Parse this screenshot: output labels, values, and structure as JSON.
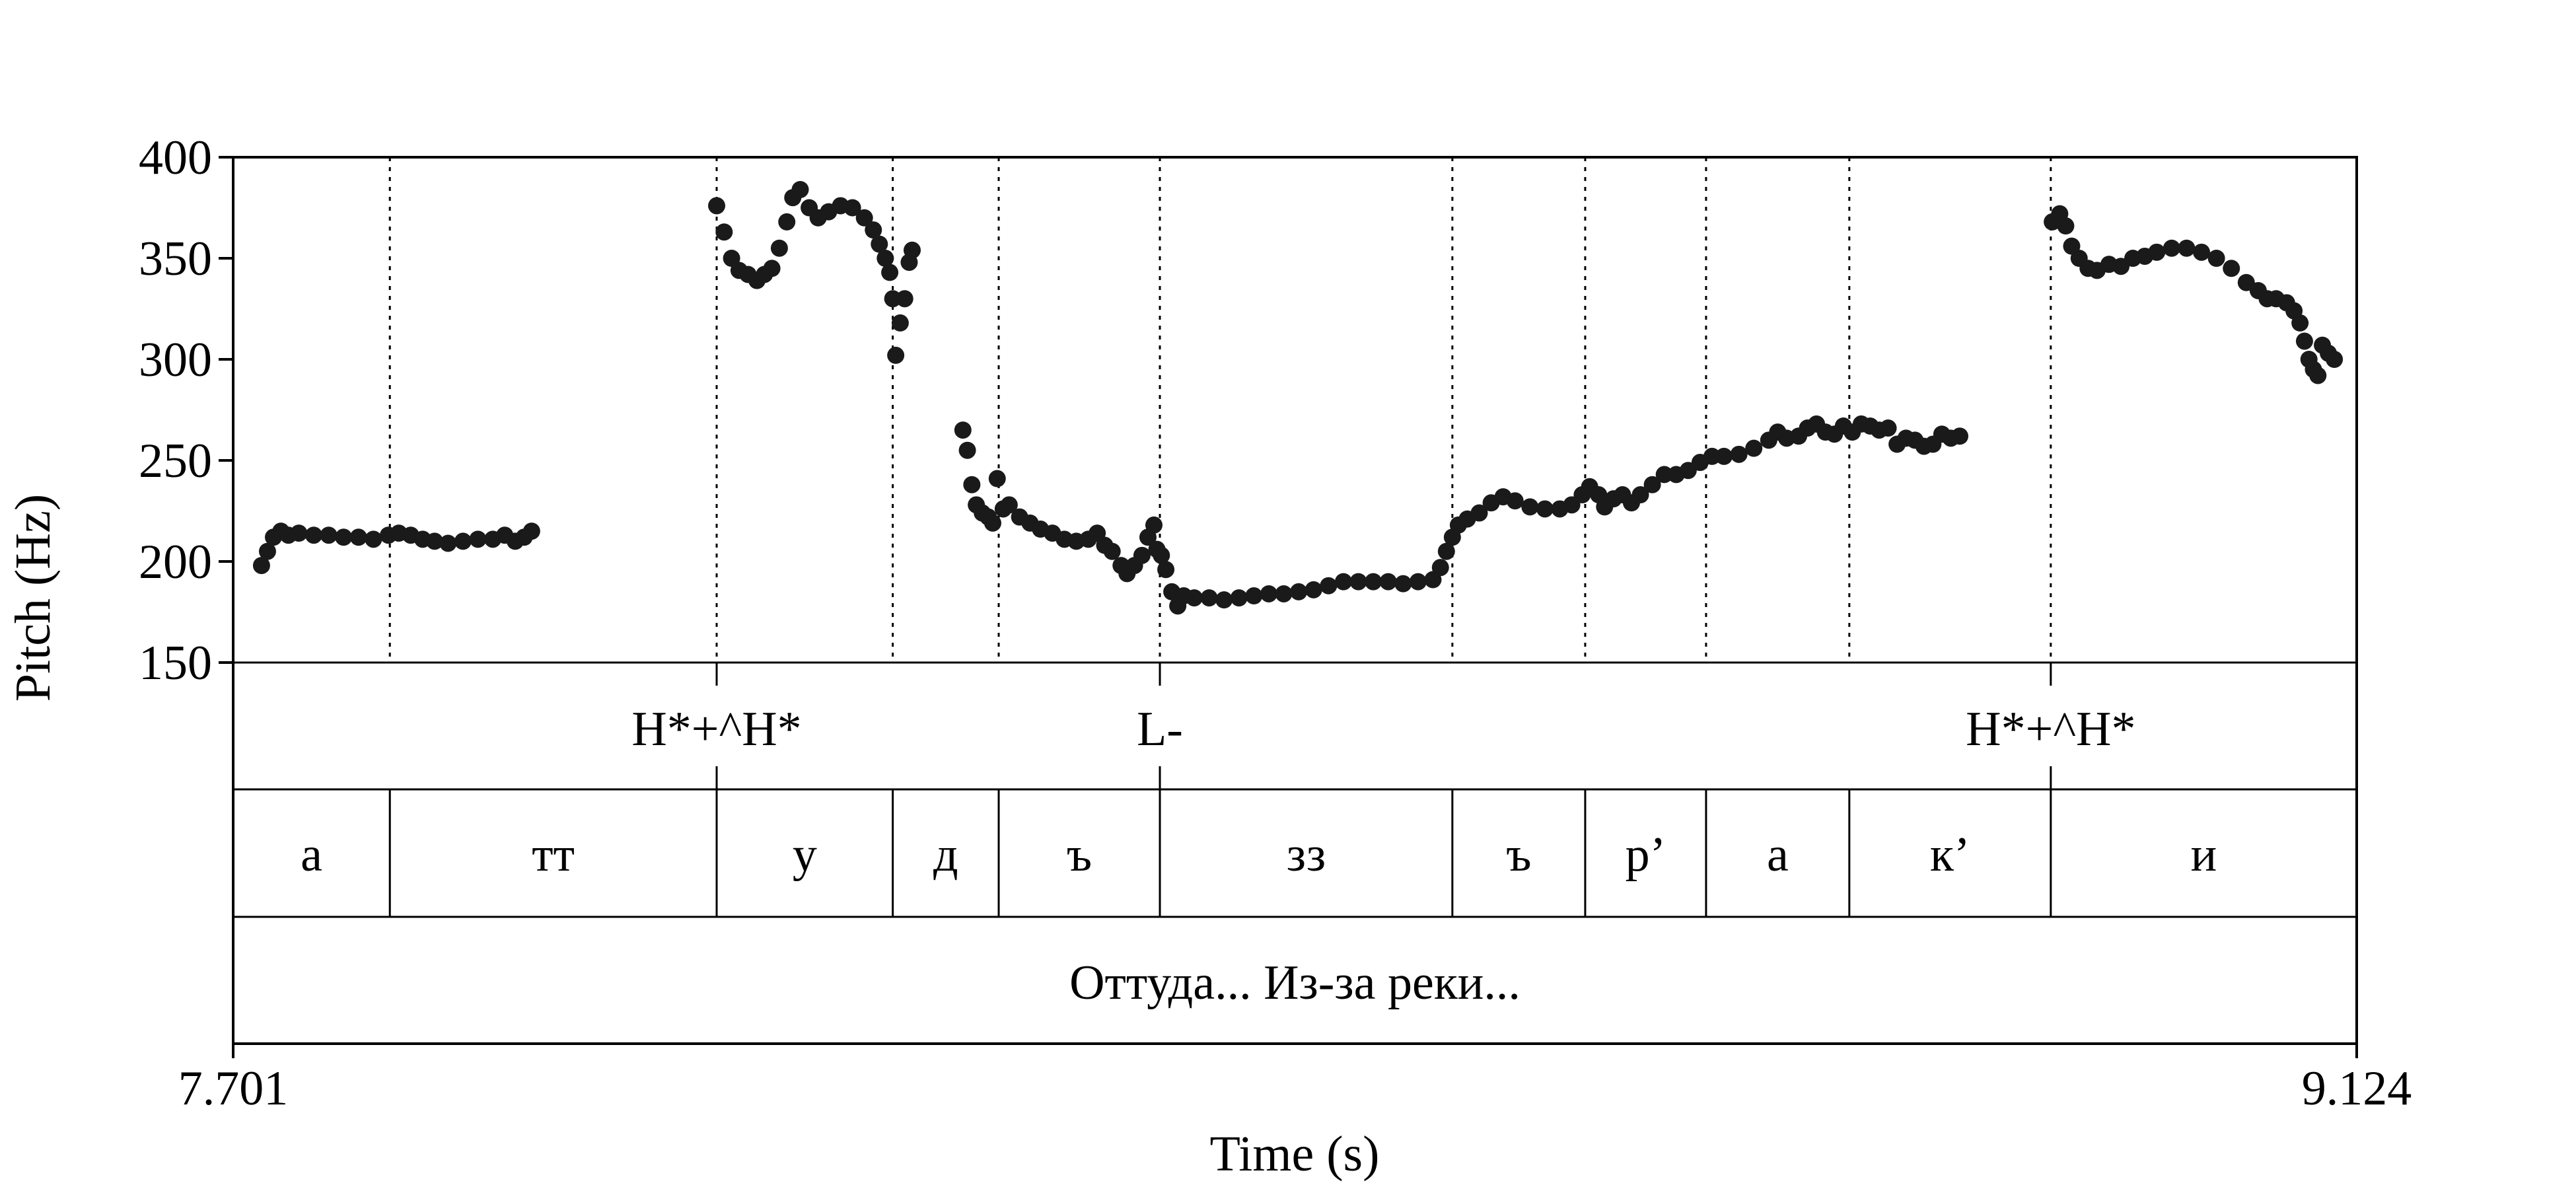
{
  "chart_data": {
    "type": "scatter",
    "xlabel": "Time (s)",
    "ylabel": "Pitch (Hz)",
    "xlim": [
      7.701,
      9.124
    ],
    "ylim": [
      150,
      400
    ],
    "x_tick_labels": [
      "7.701",
      "9.124"
    ],
    "y_ticks": [
      150,
      200,
      250,
      300,
      350,
      400
    ],
    "y_tick_labels": [
      "150",
      "200",
      "250",
      "300",
      "350",
      "400"
    ],
    "boundaries": [
      7.806,
      8.025,
      8.143,
      8.214,
      8.322,
      8.518,
      8.607,
      8.688,
      8.784,
      8.919
    ],
    "tone_tier": [
      {
        "t": 8.025,
        "label": "H*+^H*"
      },
      {
        "t": 8.322,
        "label": "L-"
      },
      {
        "t": 8.919,
        "label": "H*+^H*"
      }
    ],
    "phone_tier": [
      {
        "start": 7.701,
        "end": 7.806,
        "label": "а"
      },
      {
        "start": 7.806,
        "end": 8.025,
        "label": "тт"
      },
      {
        "start": 8.025,
        "end": 8.143,
        "label": "у"
      },
      {
        "start": 8.143,
        "end": 8.214,
        "label": "д"
      },
      {
        "start": 8.214,
        "end": 8.322,
        "label": "ъ"
      },
      {
        "start": 8.322,
        "end": 8.518,
        "label": "зз"
      },
      {
        "start": 8.518,
        "end": 8.607,
        "label": "ъ"
      },
      {
        "start": 8.607,
        "end": 8.688,
        "label": "р’"
      },
      {
        "start": 8.688,
        "end": 8.784,
        "label": "а"
      },
      {
        "start": 8.784,
        "end": 8.919,
        "label": "к’"
      },
      {
        "start": 8.919,
        "end": 9.124,
        "label": "и"
      }
    ],
    "word_tier": [
      {
        "start": 7.701,
        "end": 9.124,
        "label": "Оттуда... Из-за реки..."
      }
    ],
    "series": [
      {
        "segments": [
          [
            [
              7.72,
              198
            ],
            [
              7.724,
              205
            ],
            [
              7.728,
              212
            ],
            [
              7.733,
              215
            ],
            [
              7.738,
              213
            ],
            [
              7.745,
              214
            ],
            [
              7.755,
              213
            ],
            [
              7.765,
              213
            ],
            [
              7.775,
              212
            ],
            [
              7.785,
              212
            ],
            [
              7.795,
              211
            ],
            [
              7.805,
              213
            ],
            [
              7.812,
              214
            ],
            [
              7.82,
              213
            ],
            [
              7.828,
              211
            ],
            [
              7.836,
              210
            ],
            [
              7.845,
              209
            ],
            [
              7.855,
              210
            ],
            [
              7.865,
              211
            ],
            [
              7.875,
              211
            ],
            [
              7.883,
              213
            ],
            [
              7.89,
              210
            ],
            [
              7.896,
              212
            ],
            [
              7.901,
              215
            ]
          ],
          [
            [
              8.025,
              376
            ],
            [
              8.03,
              363
            ],
            [
              8.035,
              350
            ],
            [
              8.04,
              344
            ],
            [
              8.046,
              342
            ],
            [
              8.052,
              339
            ],
            [
              8.057,
              342
            ],
            [
              8.062,
              345
            ],
            [
              8.067,
              355
            ],
            [
              8.072,
              368
            ],
            [
              8.076,
              380
            ],
            [
              8.081,
              384
            ],
            [
              8.087,
              375
            ],
            [
              8.093,
              370
            ],
            [
              8.1,
              373
            ],
            [
              8.108,
              376
            ],
            [
              8.116,
              375
            ],
            [
              8.124,
              370
            ],
            [
              8.13,
              364
            ],
            [
              8.134,
              357
            ],
            [
              8.138,
              350
            ],
            [
              8.141,
              343
            ],
            [
              8.143,
              330
            ],
            [
              8.145,
              302
            ],
            [
              8.148,
              318
            ],
            [
              8.151,
              330
            ],
            [
              8.154,
              348
            ],
            [
              8.156,
              354
            ]
          ],
          [
            [
              8.19,
              265
            ],
            [
              8.193,
              255
            ],
            [
              8.196,
              238
            ],
            [
              8.199,
              228
            ],
            [
              8.203,
              224
            ],
            [
              8.207,
              222
            ],
            [
              8.21,
              219
            ],
            [
              8.213,
              241
            ],
            [
              8.217,
              226
            ],
            [
              8.221,
              228
            ],
            [
              8.228,
              222
            ],
            [
              8.235,
              219
            ],
            [
              8.242,
              216
            ],
            [
              8.25,
              214
            ],
            [
              8.258,
              211
            ],
            [
              8.266,
              210
            ],
            [
              8.274,
              211
            ],
            [
              8.28,
              214
            ],
            [
              8.285,
              208
            ],
            [
              8.29,
              205
            ],
            [
              8.296,
              198
            ],
            [
              8.3,
              194
            ],
            [
              8.305,
              198
            ],
            [
              8.31,
              203
            ],
            [
              8.314,
              212
            ],
            [
              8.318,
              218
            ],
            [
              8.32,
              206
            ],
            [
              8.323,
              203
            ],
            [
              8.326,
              196
            ],
            [
              8.33,
              185
            ],
            [
              8.334,
              178
            ],
            [
              8.338,
              183
            ],
            [
              8.345,
              182
            ],
            [
              8.355,
              182
            ],
            [
              8.365,
              181
            ],
            [
              8.375,
              182
            ],
            [
              8.385,
              183
            ],
            [
              8.395,
              184
            ],
            [
              8.405,
              184
            ],
            [
              8.415,
              185
            ],
            [
              8.425,
              186
            ],
            [
              8.435,
              188
            ],
            [
              8.445,
              190
            ],
            [
              8.455,
              190
            ],
            [
              8.465,
              190
            ],
            [
              8.475,
              190
            ],
            [
              8.485,
              189
            ],
            [
              8.495,
              190
            ],
            [
              8.505,
              191
            ],
            [
              8.51,
              197
            ],
            [
              8.514,
              205
            ],
            [
              8.518,
              212
            ],
            [
              8.522,
              218
            ],
            [
              8.528,
              221
            ],
            [
              8.536,
              224
            ],
            [
              8.544,
              229
            ],
            [
              8.552,
              232
            ],
            [
              8.56,
              230
            ],
            [
              8.57,
              227
            ],
            [
              8.58,
              226
            ],
            [
              8.59,
              226
            ],
            [
              8.598,
              228
            ],
            [
              8.605,
              233
            ],
            [
              8.61,
              237
            ],
            [
              8.616,
              233
            ],
            [
              8.62,
              227
            ],
            [
              8.626,
              231
            ],
            [
              8.632,
              233
            ],
            [
              8.638,
              229
            ],
            [
              8.644,
              233
            ],
            [
              8.652,
              238
            ],
            [
              8.66,
              243
            ],
            [
              8.668,
              243
            ],
            [
              8.676,
              245
            ],
            [
              8.684,
              249
            ],
            [
              8.692,
              252
            ],
            [
              8.7,
              252
            ],
            [
              8.71,
              253
            ],
            [
              8.72,
              256
            ],
            [
              8.73,
              260
            ],
            [
              8.736,
              264
            ],
            [
              8.742,
              261
            ],
            [
              8.75,
              262
            ],
            [
              8.756,
              266
            ],
            [
              8.762,
              268
            ],
            [
              8.768,
              264
            ],
            [
              8.774,
              263
            ],
            [
              8.78,
              267
            ],
            [
              8.786,
              264
            ],
            [
              8.792,
              268
            ],
            [
              8.798,
              267
            ],
            [
              8.804,
              265
            ],
            [
              8.81,
              266
            ],
            [
              8.816,
              258
            ],
            [
              8.822,
              261
            ],
            [
              8.828,
              260
            ],
            [
              8.834,
              257
            ],
            [
              8.84,
              258
            ],
            [
              8.846,
              263
            ],
            [
              8.852,
              261
            ],
            [
              8.858,
              262
            ]
          ],
          [
            [
              8.92,
              368
            ],
            [
              8.925,
              372
            ],
            [
              8.929,
              366
            ],
            [
              8.933,
              356
            ],
            [
              8.938,
              350
            ],
            [
              8.944,
              345
            ],
            [
              8.95,
              344
            ],
            [
              8.958,
              347
            ],
            [
              8.966,
              346
            ],
            [
              8.974,
              350
            ],
            [
              8.982,
              351
            ],
            [
              8.99,
              353
            ],
            [
              9.0,
              355
            ],
            [
              9.01,
              355
            ],
            [
              9.02,
              353
            ],
            [
              9.03,
              350
            ],
            [
              9.04,
              345
            ],
            [
              9.05,
              338
            ],
            [
              9.058,
              334
            ],
            [
              9.064,
              330
            ],
            [
              9.07,
              330
            ],
            [
              9.077,
              328
            ],
            [
              9.082,
              324
            ],
            [
              9.086,
              318
            ],
            [
              9.089,
              309
            ],
            [
              9.092,
              300
            ],
            [
              9.095,
              295
            ],
            [
              9.098,
              292
            ],
            [
              9.101,
              307
            ],
            [
              9.105,
              303
            ],
            [
              9.109,
              300
            ]
          ]
        ]
      }
    ]
  }
}
